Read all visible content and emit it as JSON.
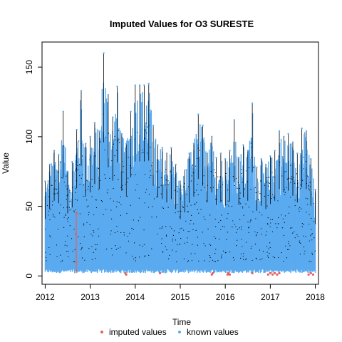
{
  "chart_data": {
    "type": "line",
    "title": "Imputed Values for  O3 SURESTE",
    "xlabel": "Time",
    "ylabel": "Value",
    "xlim": [
      2011.93,
      2018.07
    ],
    "ylim": [
      -6,
      168
    ],
    "x_ticks": [
      2012,
      2013,
      2014,
      2015,
      2016,
      2017,
      2018
    ],
    "y_ticks": [
      0,
      50,
      100,
      150
    ],
    "x_tick_labels": [
      "2012",
      "2013",
      "2014",
      "2015",
      "2016",
      "2017",
      "2018"
    ],
    "y_tick_labels": [
      "0",
      "50",
      "100",
      "150"
    ],
    "grid": false,
    "legend_position": "bottom",
    "series": [
      {
        "name": "known values",
        "color": "#5aaaf0",
        "x": [
          2012.0,
          2012.1,
          2012.2,
          2012.3,
          2012.4,
          2012.5,
          2012.6,
          2012.7,
          2012.8,
          2012.9,
          2013.0,
          2013.1,
          2013.2,
          2013.3,
          2013.4,
          2013.5,
          2013.6,
          2013.7,
          2013.8,
          2013.9,
          2014.0,
          2014.1,
          2014.2,
          2014.3,
          2014.4,
          2014.5,
          2014.6,
          2014.7,
          2014.8,
          2014.9,
          2015.0,
          2015.1,
          2015.2,
          2015.3,
          2015.4,
          2015.5,
          2015.6,
          2015.7,
          2015.8,
          2015.9,
          2016.0,
          2016.1,
          2016.2,
          2016.3,
          2016.4,
          2016.5,
          2016.6,
          2016.7,
          2016.8,
          2016.9,
          2017.0,
          2017.1,
          2017.2,
          2017.3,
          2017.4,
          2017.5,
          2017.6,
          2017.7,
          2017.8,
          2017.9,
          2018.0
        ],
        "y_max": [
          68,
          80,
          90,
          87,
          118,
          75,
          82,
          105,
          133,
          95,
          100,
          110,
          104,
          160,
          130,
          114,
          136,
          102,
          95,
          118,
          137,
          137,
          137,
          138,
          108,
          94,
          92,
          88,
          92,
          80,
          68,
          76,
          88,
          95,
          116,
          108,
          88,
          100,
          85,
          88,
          84,
          90,
          112,
          85,
          94,
          90,
          124,
          78,
          84,
          80,
          86,
          90,
          104,
          100,
          102,
          96,
          88,
          106,
          104,
          84,
          62
        ],
        "y_min": [
          2,
          2,
          2,
          2,
          2,
          2,
          2,
          2,
          2,
          2,
          2,
          2,
          2,
          2,
          2,
          2,
          2,
          2,
          2,
          2,
          2,
          2,
          2,
          2,
          2,
          2,
          2,
          2,
          2,
          2,
          2,
          2,
          2,
          2,
          2,
          2,
          2,
          2,
          2,
          2,
          2,
          2,
          2,
          2,
          2,
          2,
          2,
          2,
          2,
          2,
          2,
          2,
          2,
          2,
          2,
          2,
          2,
          2,
          2,
          2,
          2
        ]
      },
      {
        "name": "imputed values",
        "color": "#e8605a",
        "x": [
          2012.68,
          2012.69,
          2012.7,
          2013.78,
          2013.8,
          2014.55,
          2015.7,
          2015.72,
          2016.05,
          2016.07,
          2016.1,
          2016.6,
          2016.95,
          2017.0,
          2017.05,
          2017.1,
          2017.15,
          2017.2,
          2017.85,
          2017.9,
          2017.95
        ],
        "y": [
          30,
          10,
          45,
          2,
          1,
          2,
          1,
          2,
          1,
          2,
          1,
          2,
          1,
          2,
          1,
          2,
          1,
          2,
          1,
          2,
          1
        ]
      }
    ],
    "legend": [
      {
        "label": "imputed values",
        "color": "#e8605a"
      },
      {
        "label": "known values",
        "color": "#5aaaf0"
      }
    ]
  }
}
